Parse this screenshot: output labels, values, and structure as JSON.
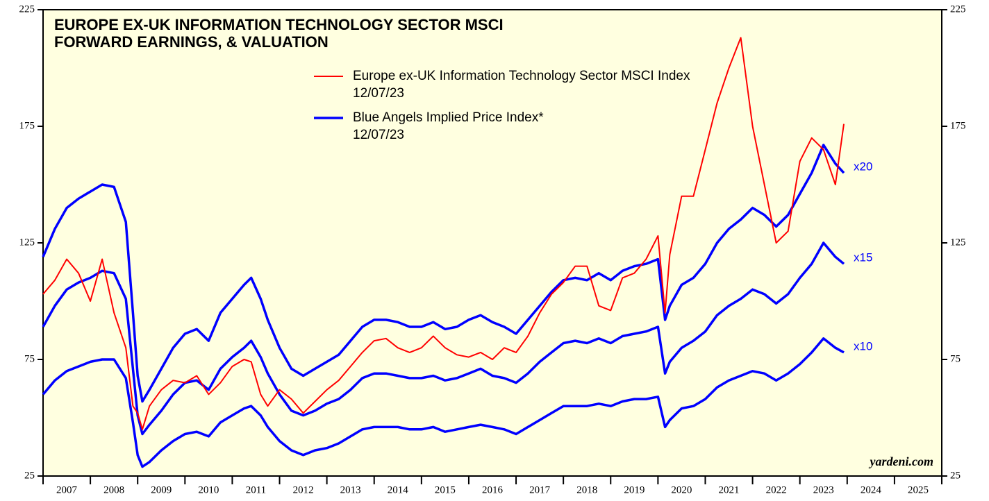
{
  "chart_data": {
    "type": "line",
    "title": [
      "EUROPE EX-UK INFORMATION TECHNOLOGY SECTOR MSCI",
      "FORWARD EARNINGS, & VALUATION"
    ],
    "source": "yardeni.com",
    "xlim": [
      2007,
      2026
    ],
    "xticks": [
      2007,
      2008,
      2009,
      2010,
      2011,
      2012,
      2013,
      2014,
      2015,
      2016,
      2017,
      2018,
      2019,
      2020,
      2021,
      2022,
      2023,
      2024,
      2025,
      2026
    ],
    "ylim": [
      25,
      225
    ],
    "yticks": [
      25,
      75,
      125,
      175,
      225
    ],
    "x": [
      2007,
      2007.25,
      2007.5,
      2007.75,
      2008,
      2008.25,
      2008.5,
      2008.75,
      2008.9,
      2009,
      2009.1,
      2009.25,
      2009.5,
      2009.75,
      2010,
      2010.25,
      2010.5,
      2010.75,
      2011,
      2011.25,
      2011.4,
      2011.6,
      2011.75,
      2012,
      2012.25,
      2012.5,
      2012.75,
      2013,
      2013.25,
      2013.5,
      2013.75,
      2014,
      2014.25,
      2014.5,
      2014.75,
      2015,
      2015.25,
      2015.5,
      2015.75,
      2016,
      2016.25,
      2016.5,
      2016.75,
      2017,
      2017.25,
      2017.5,
      2017.75,
      2018,
      2018.25,
      2018.5,
      2018.75,
      2019,
      2019.25,
      2019.5,
      2019.75,
      2020,
      2020.15,
      2020.25,
      2020.5,
      2020.75,
      2021,
      2021.25,
      2021.5,
      2021.75,
      2022,
      2022.25,
      2022.5,
      2022.75,
      2023,
      2023.25,
      2023.5,
      2023.75,
      2023.93
    ],
    "series": [
      {
        "name": "Europe ex-UK Information Technology Sector MSCI Index",
        "date": "12/07/23",
        "color": "#ff0000",
        "width": 2,
        "values": [
          103,
          109,
          118,
          112,
          100,
          118,
          95,
          80,
          55,
          52,
          45,
          55,
          62,
          66,
          65,
          68,
          60,
          65,
          72,
          75,
          74,
          60,
          55,
          62,
          58,
          52,
          57,
          62,
          66,
          72,
          78,
          83,
          84,
          80,
          78,
          80,
          85,
          80,
          77,
          76,
          78,
          75,
          80,
          78,
          85,
          95,
          103,
          108,
          115,
          115,
          98,
          96,
          110,
          112,
          118,
          128,
          95,
          120,
          145,
          145,
          165,
          185,
          200,
          213,
          175,
          150,
          125,
          130,
          160,
          170,
          165,
          150,
          176
        ]
      },
      {
        "name": "Blue Angels Implied Price Index*",
        "date": "12/07/23",
        "label": "x20",
        "color": "#0000ff",
        "width": 3.5,
        "values": [
          119,
          131,
          140,
          144,
          147,
          150,
          149,
          134,
          95,
          68,
          57,
          62,
          71,
          80,
          86,
          88,
          83,
          95,
          101,
          107,
          110,
          101,
          92,
          80,
          71,
          68,
          71,
          74,
          77,
          83,
          89,
          92,
          92,
          91,
          89,
          89,
          91,
          88,
          89,
          92,
          94,
          91,
          89,
          86,
          92,
          98,
          104,
          109,
          110,
          109,
          112,
          109,
          113,
          115,
          116,
          118,
          92,
          98,
          107,
          110,
          116,
          125,
          131,
          135,
          140,
          137,
          132,
          137,
          146,
          155,
          167,
          159,
          155
        ]
      },
      {
        "label": "x15",
        "color": "#0000ff",
        "width": 3.5,
        "values": [
          89,
          98,
          105,
          108,
          110,
          113,
          112,
          101,
          71,
          51,
          43,
          47,
          53,
          60,
          65,
          66,
          62,
          71,
          76,
          80,
          83,
          76,
          69,
          60,
          53,
          51,
          53,
          56,
          58,
          62,
          67,
          69,
          69,
          68,
          67,
          67,
          68,
          66,
          67,
          69,
          71,
          68,
          67,
          65,
          69,
          74,
          78,
          82,
          83,
          82,
          84,
          82,
          85,
          86,
          87,
          89,
          69,
          74,
          80,
          83,
          87,
          94,
          98,
          101,
          105,
          103,
          99,
          103,
          110,
          116,
          125,
          119,
          116
        ]
      },
      {
        "label": "x10",
        "color": "#0000ff",
        "width": 3.5,
        "values": [
          60,
          66,
          70,
          72,
          74,
          75,
          75,
          67,
          48,
          34,
          29,
          31,
          36,
          40,
          43,
          44,
          42,
          48,
          51,
          54,
          55,
          51,
          46,
          40,
          36,
          34,
          36,
          37,
          39,
          42,
          45,
          46,
          46,
          46,
          45,
          45,
          46,
          44,
          45,
          46,
          47,
          46,
          45,
          43,
          46,
          49,
          52,
          55,
          55,
          55,
          56,
          55,
          57,
          58,
          58,
          59,
          46,
          49,
          54,
          55,
          58,
          63,
          66,
          68,
          70,
          69,
          66,
          69,
          73,
          78,
          84,
          80,
          78
        ]
      }
    ]
  }
}
